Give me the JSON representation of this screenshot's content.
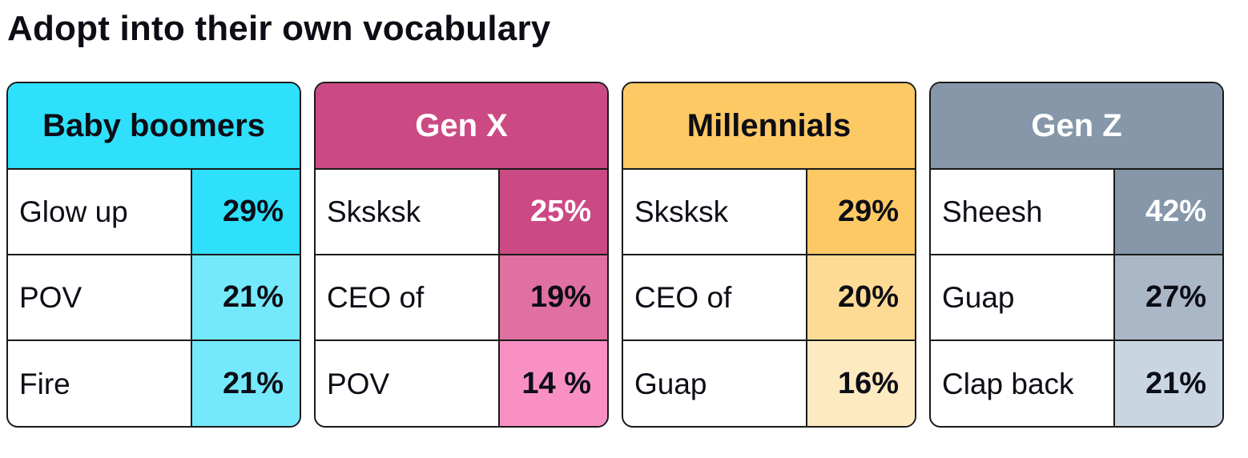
{
  "title": "Adopt into their own vocabulary",
  "chart_data": {
    "type": "table",
    "title": "Adopt into their own vocabulary",
    "groups": [
      {
        "name": "Baby boomers",
        "header_color": "#2ee0fb",
        "header_text_color": "#0d0d16",
        "rows": [
          {
            "term": "Glow up",
            "value_label": "29%",
            "value": 29,
            "color": "#2ee0fb",
            "text_color": "#0d0d16"
          },
          {
            "term": "POV",
            "value_label": "21%",
            "value": 21,
            "color": "#74e9fb",
            "text_color": "#0d0d16"
          },
          {
            "term": "Fire",
            "value_label": "21%",
            "value": 21,
            "color": "#74e9fb",
            "text_color": "#0d0d16"
          }
        ]
      },
      {
        "name": "Gen X",
        "header_color": "#cc4a84",
        "header_text_color": "#ffffff",
        "rows": [
          {
            "term": "Sksksk",
            "value_label": "25%",
            "value": 25,
            "color": "#cc4a84",
            "text_color": "#ffffff"
          },
          {
            "term": "CEO of",
            "value_label": "19%",
            "value": 19,
            "color": "#e0709f",
            "text_color": "#0d0d16"
          },
          {
            "term": "POV",
            "value_label": "14 %",
            "value": 14,
            "color": "#f990c4",
            "text_color": "#0d0d16"
          }
        ]
      },
      {
        "name": "Millennials",
        "header_color": "#fdc964",
        "header_text_color": "#0d0d16",
        "rows": [
          {
            "term": "Sksksk",
            "value_label": "29%",
            "value": 29,
            "color": "#fdc964",
            "text_color": "#0d0d16"
          },
          {
            "term": "CEO of",
            "value_label": "20%",
            "value": 20,
            "color": "#fedb94",
            "text_color": "#0d0d16"
          },
          {
            "term": "Guap",
            "value_label": "16%",
            "value": 16,
            "color": "#feeac1",
            "text_color": "#0d0d16"
          }
        ]
      },
      {
        "name": "Gen Z",
        "header_color": "#8597a9",
        "header_text_color": "#ffffff",
        "rows": [
          {
            "term": "Sheesh",
            "value_label": "42%",
            "value": 42,
            "color": "#8597a9",
            "text_color": "#ffffff"
          },
          {
            "term": "Guap",
            "value_label": "27%",
            "value": 27,
            "color": "#a9b7c6",
            "text_color": "#0d0d16"
          },
          {
            "term": "Clap back",
            "value_label": "21%",
            "value": 21,
            "color": "#c9d6e2",
            "text_color": "#0d0d16"
          }
        ]
      }
    ]
  }
}
